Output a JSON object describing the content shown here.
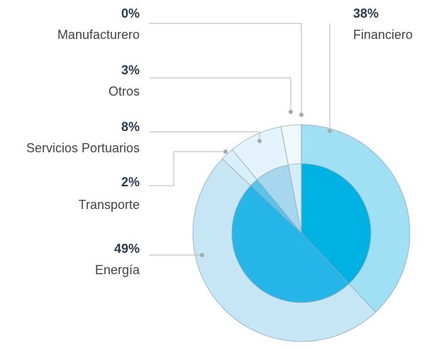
{
  "chart_data": {
    "type": "pie",
    "categories": [
      "Financiero",
      "Energía",
      "Transporte",
      "Servicios Portuarios",
      "Otros",
      "Manufacturero"
    ],
    "values": [
      38,
      49,
      2,
      8,
      3,
      0
    ],
    "value_labels": [
      "38%",
      "49%",
      "2%",
      "8%",
      "3%",
      "0%"
    ],
    "colors": [
      "#a0e0f4",
      "#c6e6f6",
      "#d9eff9",
      "#e4f3fb",
      "#eff8fd",
      "#f5fbfe"
    ],
    "inner_colors": [
      "#00b2e3",
      "#26b5e7",
      "#5cc4ec",
      "#a7d7ef",
      "#d6edf8",
      "#e8f5fb"
    ]
  }
}
